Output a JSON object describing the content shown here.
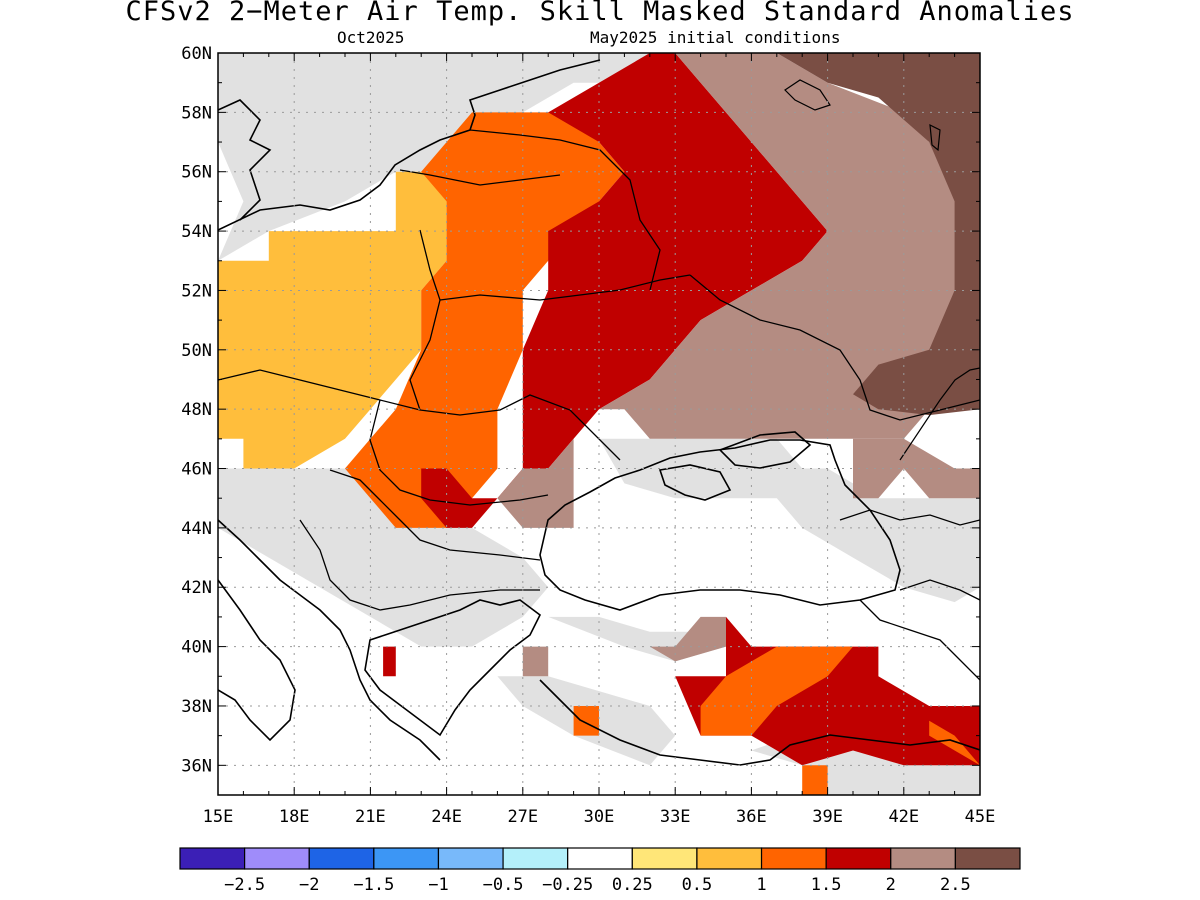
{
  "title": "CFSv2 2−Meter Air Temp. Skill Masked Standard Anomalies",
  "subtitle_left": "Oct2025",
  "subtitle_right": "May2025 initial conditions",
  "colors": {
    "masked_gray": "#e1e1e1",
    "background": "#ffffff",
    "border": "#000000",
    "bins": [
      "#3b1fb6",
      "#9f8cfa",
      "#1e64e6",
      "#3c96f5",
      "#78b9fa",
      "#b4f0fa",
      "#ffffff",
      "#ffe678",
      "#ffbe3c",
      "#ff6400",
      "#c00000",
      "#b48c82",
      "#7a4e44"
    ]
  },
  "chart_data": {
    "type": "heatmap",
    "xaxis": {
      "ticks": [
        "15E",
        "18E",
        "21E",
        "24E",
        "27E",
        "30E",
        "33E",
        "36E",
        "39E",
        "42E",
        "45E"
      ],
      "range": [
        15,
        45
      ]
    },
    "yaxis": {
      "ticks": [
        "36N",
        "38N",
        "40N",
        "42N",
        "44N",
        "46N",
        "48N",
        "50N",
        "52N",
        "54N",
        "56N",
        "58N",
        "60N"
      ],
      "range": [
        35,
        60
      ]
    },
    "grid": "dotted",
    "colorbar": {
      "labels": [
        "−2.5",
        "−2",
        "−1.5",
        "−1",
        "−0.5",
        "−0.25",
        "0.25",
        "0.5",
        "1",
        "1.5",
        "2",
        "2.5"
      ]
    },
    "regions": [
      {
        "name": "gray",
        "color": "#e1e1e1",
        "pts": [
          [
            15,
            59
          ],
          [
            17,
            59
          ],
          [
            17,
            60
          ],
          [
            15,
            60
          ]
        ]
      },
      {
        "name": "gray",
        "color": "#e1e1e1",
        "pts": [
          [
            15,
            53
          ],
          [
            17,
            54
          ],
          [
            20,
            55
          ],
          [
            22,
            56
          ],
          [
            25,
            56
          ],
          [
            26,
            57
          ],
          [
            27,
            58
          ],
          [
            29,
            59
          ],
          [
            31,
            59
          ],
          [
            32,
            60
          ],
          [
            15,
            60
          ],
          [
            15,
            57
          ],
          [
            16,
            55
          ]
        ]
      },
      {
        "name": "gray",
        "color": "#e1e1e1",
        "pts": [
          [
            15,
            46
          ],
          [
            18,
            46
          ],
          [
            22,
            46
          ],
          [
            24,
            45
          ],
          [
            25,
            44
          ],
          [
            27,
            43
          ],
          [
            28,
            42
          ],
          [
            27,
            41
          ],
          [
            25,
            40
          ],
          [
            23,
            40
          ],
          [
            21,
            41
          ],
          [
            19,
            42
          ],
          [
            17,
            43
          ],
          [
            15,
            44
          ]
        ]
      },
      {
        "name": "gray",
        "color": "#e1e1e1",
        "pts": [
          [
            28,
            41
          ],
          [
            30,
            41
          ],
          [
            32,
            40.5
          ],
          [
            34,
            40.5
          ],
          [
            35,
            40
          ],
          [
            33,
            39.5
          ],
          [
            31,
            40
          ]
        ]
      },
      {
        "name": "gray",
        "color": "#e1e1e1",
        "pts": [
          [
            26,
            39
          ],
          [
            28,
            39
          ],
          [
            30,
            38.5
          ],
          [
            32,
            38
          ],
          [
            33,
            37
          ],
          [
            32,
            36
          ],
          [
            29,
            37
          ],
          [
            27,
            38
          ]
        ]
      },
      {
        "name": "gray",
        "color": "#e1e1e1",
        "pts": [
          [
            36,
            46
          ],
          [
            39,
            46
          ],
          [
            41,
            45
          ],
          [
            43,
            45
          ],
          [
            45,
            45
          ],
          [
            45,
            42
          ],
          [
            44,
            41.5
          ],
          [
            42,
            42
          ],
          [
            40,
            43
          ],
          [
            38,
            44
          ]
        ]
      },
      {
        "name": "gray",
        "color": "#e1e1e1",
        "pts": [
          [
            30,
            47
          ],
          [
            33,
            47
          ],
          [
            35,
            47
          ],
          [
            37,
            47
          ],
          [
            38,
            46
          ],
          [
            37,
            45
          ],
          [
            35,
            45
          ],
          [
            33,
            45
          ],
          [
            31,
            45.5
          ]
        ]
      },
      {
        "name": "gray",
        "color": "#e1e1e1",
        "pts": [
          [
            36,
            36.5
          ],
          [
            38,
            36
          ],
          [
            39,
            35
          ],
          [
            45,
            35
          ],
          [
            45,
            36
          ],
          [
            43,
            36.5
          ],
          [
            41,
            36.5
          ],
          [
            39,
            36.5
          ],
          [
            37,
            36.8
          ]
        ]
      },
      {
        "name": "bin-0.5",
        "color": "#ffe678",
        "pts": [
          [
            15,
            50
          ],
          [
            16,
            50
          ],
          [
            16,
            51
          ],
          [
            15,
            51
          ]
        ]
      },
      {
        "name": "bin-1",
        "color": "#ffbe3c",
        "pts": [
          [
            15,
            53
          ],
          [
            17,
            53
          ],
          [
            17,
            54
          ],
          [
            19,
            54
          ],
          [
            22,
            54
          ],
          [
            22,
            55
          ],
          [
            22,
            56
          ],
          [
            24,
            56
          ],
          [
            24,
            55
          ],
          [
            24,
            53
          ],
          [
            23,
            52
          ],
          [
            23,
            50
          ],
          [
            22,
            49
          ],
          [
            21,
            48
          ],
          [
            20,
            47
          ],
          [
            18,
            46
          ],
          [
            16,
            46
          ],
          [
            16,
            47
          ],
          [
            15,
            47
          ],
          [
            15,
            49
          ]
        ]
      },
      {
        "name": "bin-1.5",
        "color": "#ff6400",
        "pts": [
          [
            23,
            56
          ],
          [
            25,
            58
          ],
          [
            27,
            58
          ],
          [
            29,
            58
          ],
          [
            30,
            57
          ],
          [
            31,
            56
          ],
          [
            30,
            55
          ],
          [
            29,
            54
          ],
          [
            28,
            53
          ],
          [
            27,
            52
          ],
          [
            27,
            50
          ],
          [
            26,
            48
          ],
          [
            26,
            46
          ],
          [
            25,
            45
          ],
          [
            24,
            44
          ],
          [
            22,
            44
          ],
          [
            21,
            45
          ],
          [
            20,
            46
          ],
          [
            21,
            47
          ],
          [
            22,
            48
          ],
          [
            23,
            50
          ],
          [
            23,
            52
          ],
          [
            24,
            53
          ],
          [
            24,
            55
          ]
        ]
      },
      {
        "name": "bin-2",
        "color": "#c00000",
        "pts": [
          [
            28,
            58
          ],
          [
            30,
            59
          ],
          [
            32,
            60
          ],
          [
            33,
            60
          ],
          [
            34,
            59
          ],
          [
            36,
            57
          ],
          [
            38,
            55
          ],
          [
            39,
            54
          ],
          [
            38,
            53
          ],
          [
            36,
            52
          ],
          [
            34,
            51
          ],
          [
            33,
            50
          ],
          [
            32,
            49
          ],
          [
            30,
            48
          ],
          [
            29,
            47
          ],
          [
            28,
            46
          ],
          [
            26,
            45
          ],
          [
            25,
            45
          ],
          [
            24,
            46
          ],
          [
            23,
            46
          ],
          [
            23,
            45
          ],
          [
            24,
            44
          ],
          [
            25,
            44
          ],
          [
            26,
            45
          ],
          [
            27,
            46
          ],
          [
            27,
            48
          ],
          [
            27,
            50
          ],
          [
            28,
            52
          ],
          [
            28,
            54
          ],
          [
            30,
            55
          ],
          [
            31,
            56
          ],
          [
            30,
            57
          ]
        ]
      },
      {
        "name": "bin-2",
        "color": "#c00000",
        "pts": [
          [
            33,
            39
          ],
          [
            35,
            39
          ],
          [
            35,
            41
          ],
          [
            36,
            40
          ],
          [
            39,
            40
          ],
          [
            41,
            40
          ],
          [
            41,
            39
          ],
          [
            43,
            38
          ],
          [
            45,
            38
          ],
          [
            45,
            36
          ],
          [
            42,
            36
          ],
          [
            40,
            36.5
          ],
          [
            38,
            36
          ],
          [
            36,
            37
          ],
          [
            34,
            37
          ]
        ]
      },
      {
        "name": "bin-2",
        "color": "#c00000",
        "pts": [
          [
            21.5,
            39
          ],
          [
            22,
            39
          ],
          [
            22,
            40
          ],
          [
            21.5,
            40
          ]
        ]
      },
      {
        "name": "bin-1.5",
        "color": "#ff6400",
        "pts": [
          [
            35,
            39
          ],
          [
            37,
            40
          ],
          [
            40,
            40
          ],
          [
            39,
            39
          ],
          [
            37,
            38
          ],
          [
            36,
            37
          ],
          [
            34,
            37
          ],
          [
            34,
            38
          ]
        ]
      },
      {
        "name": "bin-1.5",
        "color": "#ff6400",
        "pts": [
          [
            43,
            37
          ],
          [
            45,
            36
          ],
          [
            44,
            37
          ],
          [
            43,
            37.5
          ]
        ]
      },
      {
        "name": "bin-1.5",
        "color": "#ff6400",
        "pts": [
          [
            29,
            37
          ],
          [
            30,
            37
          ],
          [
            30,
            38
          ],
          [
            29,
            38
          ]
        ]
      },
      {
        "name": "bin-1.5",
        "color": "#ff6400",
        "pts": [
          [
            38,
            35
          ],
          [
            39,
            35
          ],
          [
            39,
            36
          ],
          [
            38,
            36
          ]
        ]
      },
      {
        "name": "bin-2.5-light",
        "color": "#b48c82",
        "pts": [
          [
            33,
            60
          ],
          [
            37,
            60
          ],
          [
            39,
            59
          ],
          [
            42,
            58
          ],
          [
            44,
            56
          ],
          [
            45,
            54
          ],
          [
            45,
            51
          ],
          [
            44,
            49
          ],
          [
            43,
            48
          ],
          [
            42,
            47
          ],
          [
            40,
            47
          ],
          [
            38,
            47
          ],
          [
            36,
            47
          ],
          [
            34,
            47
          ],
          [
            32,
            47
          ],
          [
            31,
            48
          ],
          [
            30,
            48
          ],
          [
            32,
            49
          ],
          [
            33,
            50
          ],
          [
            34,
            51
          ],
          [
            36,
            52
          ],
          [
            38,
            53
          ],
          [
            39,
            54
          ],
          [
            38,
            55
          ],
          [
            36,
            57
          ],
          [
            34,
            59
          ]
        ]
      },
      {
        "name": "bin-2.5-light",
        "color": "#b48c82",
        "pts": [
          [
            26,
            45
          ],
          [
            27,
            46
          ],
          [
            28,
            46
          ],
          [
            29,
            47
          ],
          [
            29,
            44
          ],
          [
            27,
            44
          ]
        ]
      },
      {
        "name": "bin-2.5-light",
        "color": "#b48c82",
        "pts": [
          [
            32,
            40
          ],
          [
            33,
            40
          ],
          [
            34,
            41
          ],
          [
            35,
            41
          ],
          [
            35,
            40
          ],
          [
            33,
            39.5
          ],
          [
            32,
            40
          ]
        ]
      },
      {
        "name": "bin-2.5-light",
        "color": "#b48c82",
        "pts": [
          [
            27,
            39
          ],
          [
            28,
            39
          ],
          [
            28,
            40
          ],
          [
            27,
            40
          ]
        ]
      },
      {
        "name": "bin-2.5-light",
        "color": "#b48c82",
        "pts": [
          [
            40,
            47
          ],
          [
            42,
            47
          ],
          [
            44,
            46
          ],
          [
            45,
            46
          ],
          [
            45,
            45
          ],
          [
            43,
            45
          ],
          [
            42,
            46
          ],
          [
            41,
            45
          ],
          [
            40,
            45
          ],
          [
            40,
            46
          ]
        ]
      },
      {
        "name": "bin-2.5",
        "color": "#7a4e44",
        "pts": [
          [
            37,
            60
          ],
          [
            45,
            60
          ],
          [
            45,
            48
          ],
          [
            43,
            47.8
          ],
          [
            41,
            48
          ],
          [
            40,
            48.5
          ],
          [
            41,
            49.5
          ],
          [
            43,
            50
          ],
          [
            44,
            52
          ],
          [
            44,
            55
          ],
          [
            43,
            57
          ],
          [
            41,
            58.5
          ],
          [
            39,
            59
          ]
        ]
      }
    ]
  }
}
